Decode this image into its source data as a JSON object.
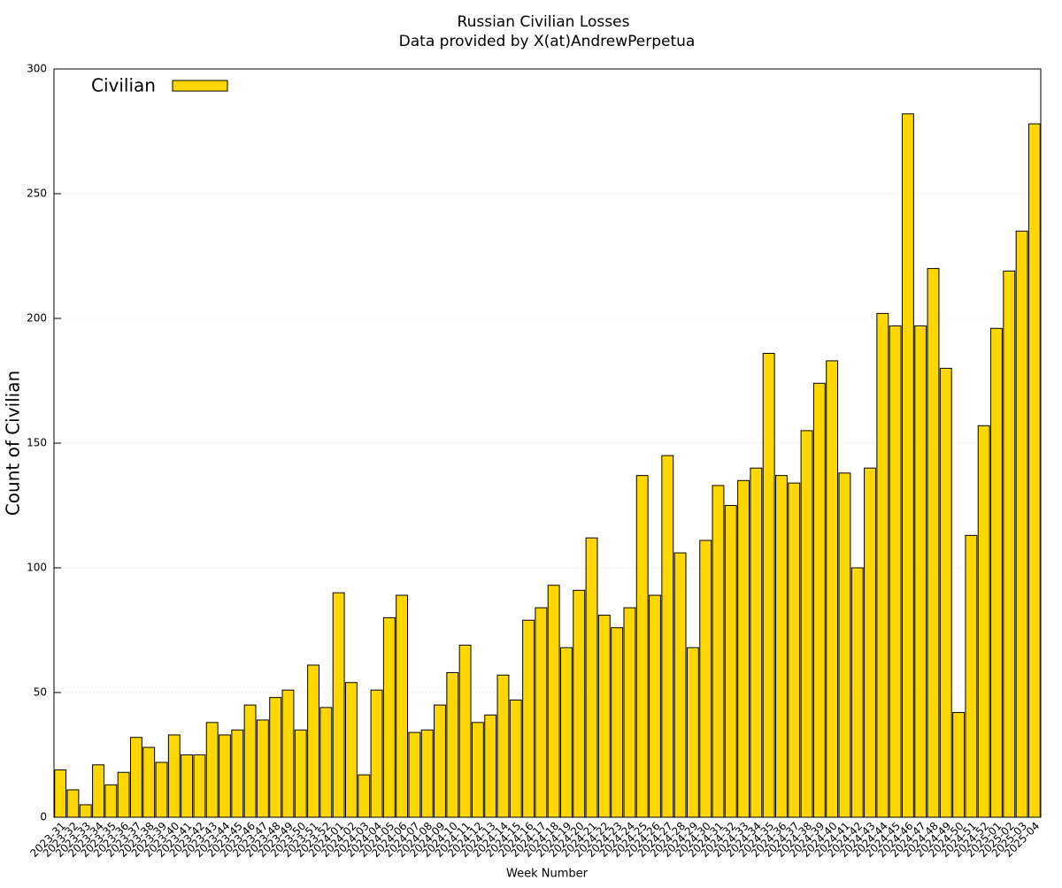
{
  "chart_data": {
    "type": "bar",
    "title": "Russian Civilian Losses",
    "subtitle": "Data provided by X(at)AndrewPerpetua",
    "x_label": "Week Number",
    "y_label": "Count of Civilian",
    "categories": [
      "2023-31",
      "2023-32",
      "2023-33",
      "2023-34",
      "2023-35",
      "2023-36",
      "2023-37",
      "2023-38",
      "2023-39",
      "2023-40",
      "2023-41",
      "2023-42",
      "2023-43",
      "2023-44",
      "2023-45",
      "2023-46",
      "2023-47",
      "2023-48",
      "2023-49",
      "2023-50",
      "2023-51",
      "2023-52",
      "2024-01",
      "2024-02",
      "2024-03",
      "2024-04",
      "2024-05",
      "2024-06",
      "2024-07",
      "2024-08",
      "2024-09",
      "2024-10",
      "2024-11",
      "2024-12",
      "2024-13",
      "2024-14",
      "2024-15",
      "2024-16",
      "2024-17",
      "2024-18",
      "2024-19",
      "2024-20",
      "2024-21",
      "2024-22",
      "2024-23",
      "2024-24",
      "2024-25",
      "2024-26",
      "2024-27",
      "2024-28",
      "2024-29",
      "2024-30",
      "2024-31",
      "2024-32",
      "2024-33",
      "2024-34",
      "2024-35",
      "2024-36",
      "2024-37",
      "2024-38",
      "2024-39",
      "2024-40",
      "2024-41",
      "2024-42",
      "2024-43",
      "2024-44",
      "2024-45",
      "2024-46",
      "2024-47",
      "2024-48",
      "2024-49",
      "2024-50",
      "2024-51",
      "2024-52",
      "2025-01",
      "2025-02",
      "2025-03",
      "2025-04"
    ],
    "series": [
      {
        "name": "Civilian",
        "color": "#ffd700",
        "values": [
          19,
          11,
          5,
          21,
          13,
          18,
          32,
          28,
          22,
          33,
          25,
          25,
          38,
          33,
          35,
          45,
          39,
          48,
          51,
          35,
          61,
          44,
          90,
          54,
          17,
          51,
          80,
          89,
          34,
          35,
          45,
          58,
          69,
          38,
          41,
          57,
          47,
          79,
          84,
          93,
          68,
          91,
          112,
          81,
          76,
          84,
          137,
          89,
          145,
          106,
          68,
          111,
          133,
          125,
          135,
          140,
          186,
          137,
          134,
          155,
          174,
          183,
          138,
          100,
          140,
          202,
          197,
          282,
          197,
          220,
          180,
          42,
          113,
          157,
          196,
          219,
          235,
          278
        ]
      }
    ],
    "ylim": [
      0,
      300
    ],
    "yticks": [
      0,
      50,
      100,
      150,
      200,
      250,
      300
    ],
    "grid": true,
    "legend": "upper left"
  }
}
